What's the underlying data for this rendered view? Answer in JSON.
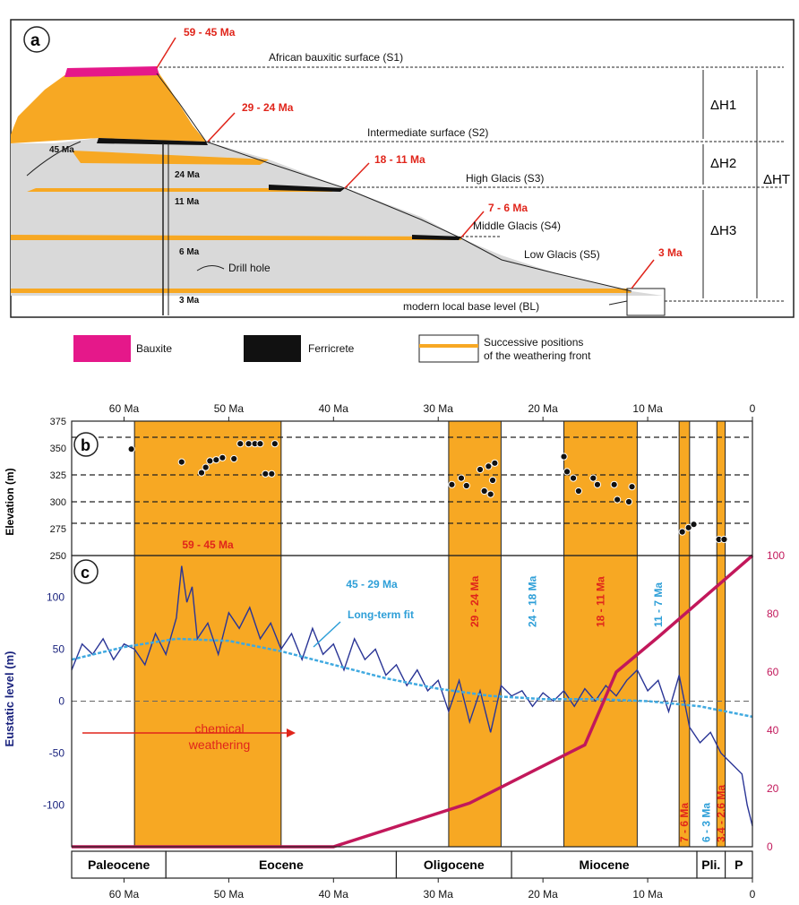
{
  "panel_a": {
    "label": "a",
    "surfaces": [
      {
        "name": "African bauxitic surface (S1)",
        "age": "59 - 45 Ma"
      },
      {
        "name": "Intermediate surface (S2)",
        "age": "29 - 24 Ma"
      },
      {
        "name": "High Glacis (S3)",
        "age": "18 - 11 Ma"
      },
      {
        "name": "Middle Glacis (S4)",
        "age": "7 - 6 Ma"
      },
      {
        "name": "Low Glacis (S5)",
        "age": "3 Ma"
      },
      {
        "name": "modern local base level (BL)",
        "age": ""
      }
    ],
    "front_ages": [
      "45 Ma",
      "24 Ma",
      "11 Ma",
      "6 Ma",
      "3 Ma"
    ],
    "drill_hole": "Drill hole",
    "dh": [
      "ΔH1",
      "ΔH2",
      "ΔH3",
      "ΔHT"
    ]
  },
  "legend": {
    "bauxite": "Bauxite",
    "ferricrete": "Ferricrete",
    "front_line1": "Successive positions",
    "front_line2": "of the weathering front",
    "colors": {
      "bauxite": "#e5188a",
      "ferricrete": "#111111",
      "orange": "#f7a823",
      "grey": "#d4d4d4"
    }
  },
  "chart_data": [
    {
      "type": "scatter",
      "panel": "b",
      "ylabel": "Elevation (m)",
      "xlabel": "",
      "x_unit": "Ma",
      "xlim": [
        65,
        0
      ],
      "ylim": [
        250,
        375
      ],
      "x_ticks": [
        "60 Ma",
        "50 Ma",
        "40 Ma",
        "30 Ma",
        "20 Ma",
        "10 Ma",
        "0"
      ],
      "x_tick_values": [
        60,
        50,
        40,
        30,
        20,
        10,
        0
      ],
      "y_ticks": [
        375,
        350,
        325,
        300,
        275,
        250
      ],
      "dashed_levels": [
        360,
        325,
        300,
        280
      ],
      "bands": [
        [
          59,
          45
        ],
        [
          29,
          24
        ],
        [
          18,
          11
        ],
        [
          7,
          6
        ],
        [
          3.4,
          2.6
        ]
      ],
      "band_labels": [
        {
          "text": "59 - 45 Ma",
          "x": 52,
          "y": 262
        }
      ],
      "points": [
        [
          59.3,
          349
        ],
        [
          54.5,
          337
        ],
        [
          52.6,
          327
        ],
        [
          52.2,
          332
        ],
        [
          51.8,
          338
        ],
        [
          51.2,
          339
        ],
        [
          50.6,
          341
        ],
        [
          49.5,
          340
        ],
        [
          48.9,
          354
        ],
        [
          48.1,
          354
        ],
        [
          47.5,
          354
        ],
        [
          47.0,
          354
        ],
        [
          46.5,
          326
        ],
        [
          45.9,
          326
        ],
        [
          45.6,
          354
        ],
        [
          28.7,
          316
        ],
        [
          27.8,
          322
        ],
        [
          27.3,
          315
        ],
        [
          26.0,
          330
        ],
        [
          25.6,
          310
        ],
        [
          25.2,
          333
        ],
        [
          25.0,
          307
        ],
        [
          24.8,
          320
        ],
        [
          24.6,
          336
        ],
        [
          18.0,
          342
        ],
        [
          17.7,
          328
        ],
        [
          17.1,
          322
        ],
        [
          16.6,
          310
        ],
        [
          15.2,
          322
        ],
        [
          14.8,
          316
        ],
        [
          13.2,
          316
        ],
        [
          12.9,
          302
        ],
        [
          11.8,
          300
        ],
        [
          11.5,
          314
        ],
        [
          6.7,
          272
        ],
        [
          6.1,
          276
        ],
        [
          5.6,
          279
        ],
        [
          3.2,
          265
        ],
        [
          2.7,
          265
        ]
      ]
    },
    {
      "type": "line",
      "panel": "c",
      "ylabel": "Eustatic level (m)",
      "y2label": "",
      "x_unit": "Ma",
      "xlim": [
        65,
        0
      ],
      "ylim": [
        -140,
        140
      ],
      "y2lim": [
        0,
        100
      ],
      "y_ticks": [
        100,
        50,
        0,
        -50,
        -100
      ],
      "y2_ticks": [
        100,
        80,
        60,
        40,
        20,
        0
      ],
      "bands": [
        [
          59,
          45
        ],
        [
          29,
          24
        ],
        [
          18,
          11
        ],
        [
          7,
          6
        ],
        [
          3.4,
          2.6
        ]
      ],
      "band_labels": [
        {
          "text": "29 - 24 Ma",
          "color": "red"
        },
        {
          "text": "24 - 18 Ma",
          "color": "blue"
        },
        {
          "text": "18 - 11 Ma",
          "color": "red"
        },
        {
          "text": "11 - 7 Ma",
          "color": "blue"
        },
        {
          "text": "7 - 6 Ma",
          "color": "red"
        },
        {
          "text": "6 - 3 Ma",
          "color": "blue"
        },
        {
          "text": "3.4 - 2.6 Ma",
          "color": "red"
        }
      ],
      "annotations": {
        "period": "45 - 29 Ma",
        "fit": "Long-term fit",
        "chem1": "chemical",
        "chem2": "weathering"
      },
      "long_term_fit": {
        "x": [
          65,
          60,
          55,
          50,
          45,
          40,
          35,
          30,
          25,
          20,
          15,
          10,
          5,
          0
        ],
        "y": [
          40,
          52,
          60,
          58,
          48,
          35,
          22,
          12,
          5,
          2,
          2,
          0,
          -5,
          -15
        ]
      },
      "magenta_series": {
        "x": [
          65,
          40,
          27,
          16,
          13,
          9,
          0
        ],
        "y": [
          0,
          0,
          15,
          35,
          60,
          72,
          100
        ]
      },
      "eustatic_series": {
        "x": [
          65,
          64,
          63,
          62,
          61,
          60,
          59,
          58,
          57,
          56,
          55,
          54.5,
          54,
          53.5,
          53,
          52,
          51,
          50,
          49,
          48,
          47,
          46,
          45,
          44,
          43,
          42,
          41,
          40,
          39,
          38,
          37,
          36,
          35,
          34,
          33,
          32,
          31,
          30,
          29,
          28,
          27,
          26,
          25,
          24,
          23,
          22,
          21,
          20,
          19,
          18,
          17,
          16,
          15,
          14,
          13,
          12,
          11,
          10,
          9,
          8,
          7,
          6,
          5,
          4,
          3,
          2,
          1,
          0.5,
          0
        ],
        "y": [
          30,
          55,
          45,
          60,
          40,
          55,
          50,
          35,
          65,
          45,
          80,
          130,
          95,
          110,
          60,
          75,
          45,
          85,
          70,
          90,
          60,
          75,
          50,
          65,
          40,
          70,
          45,
          55,
          30,
          60,
          40,
          50,
          25,
          35,
          15,
          30,
          10,
          20,
          -10,
          20,
          -20,
          10,
          -30,
          15,
          5,
          10,
          -5,
          8,
          0,
          10,
          -5,
          12,
          0,
          15,
          5,
          20,
          30,
          10,
          20,
          -10,
          25,
          -25,
          -40,
          -30,
          -50,
          -60,
          -70,
          -100,
          -120
        ]
      }
    }
  ],
  "epochs": [
    {
      "name": "Paleocene",
      "from": 65,
      "to": 56
    },
    {
      "name": "Eocene",
      "from": 56,
      "to": 34
    },
    {
      "name": "Oligocene",
      "from": 34,
      "to": 23
    },
    {
      "name": "Miocene",
      "from": 23,
      "to": 5.3
    },
    {
      "name": "Pli.",
      "from": 5.3,
      "to": 2.6
    },
    {
      "name": "P",
      "from": 2.6,
      "to": 0
    }
  ],
  "panel_labels": {
    "b": "b",
    "c": "c"
  }
}
